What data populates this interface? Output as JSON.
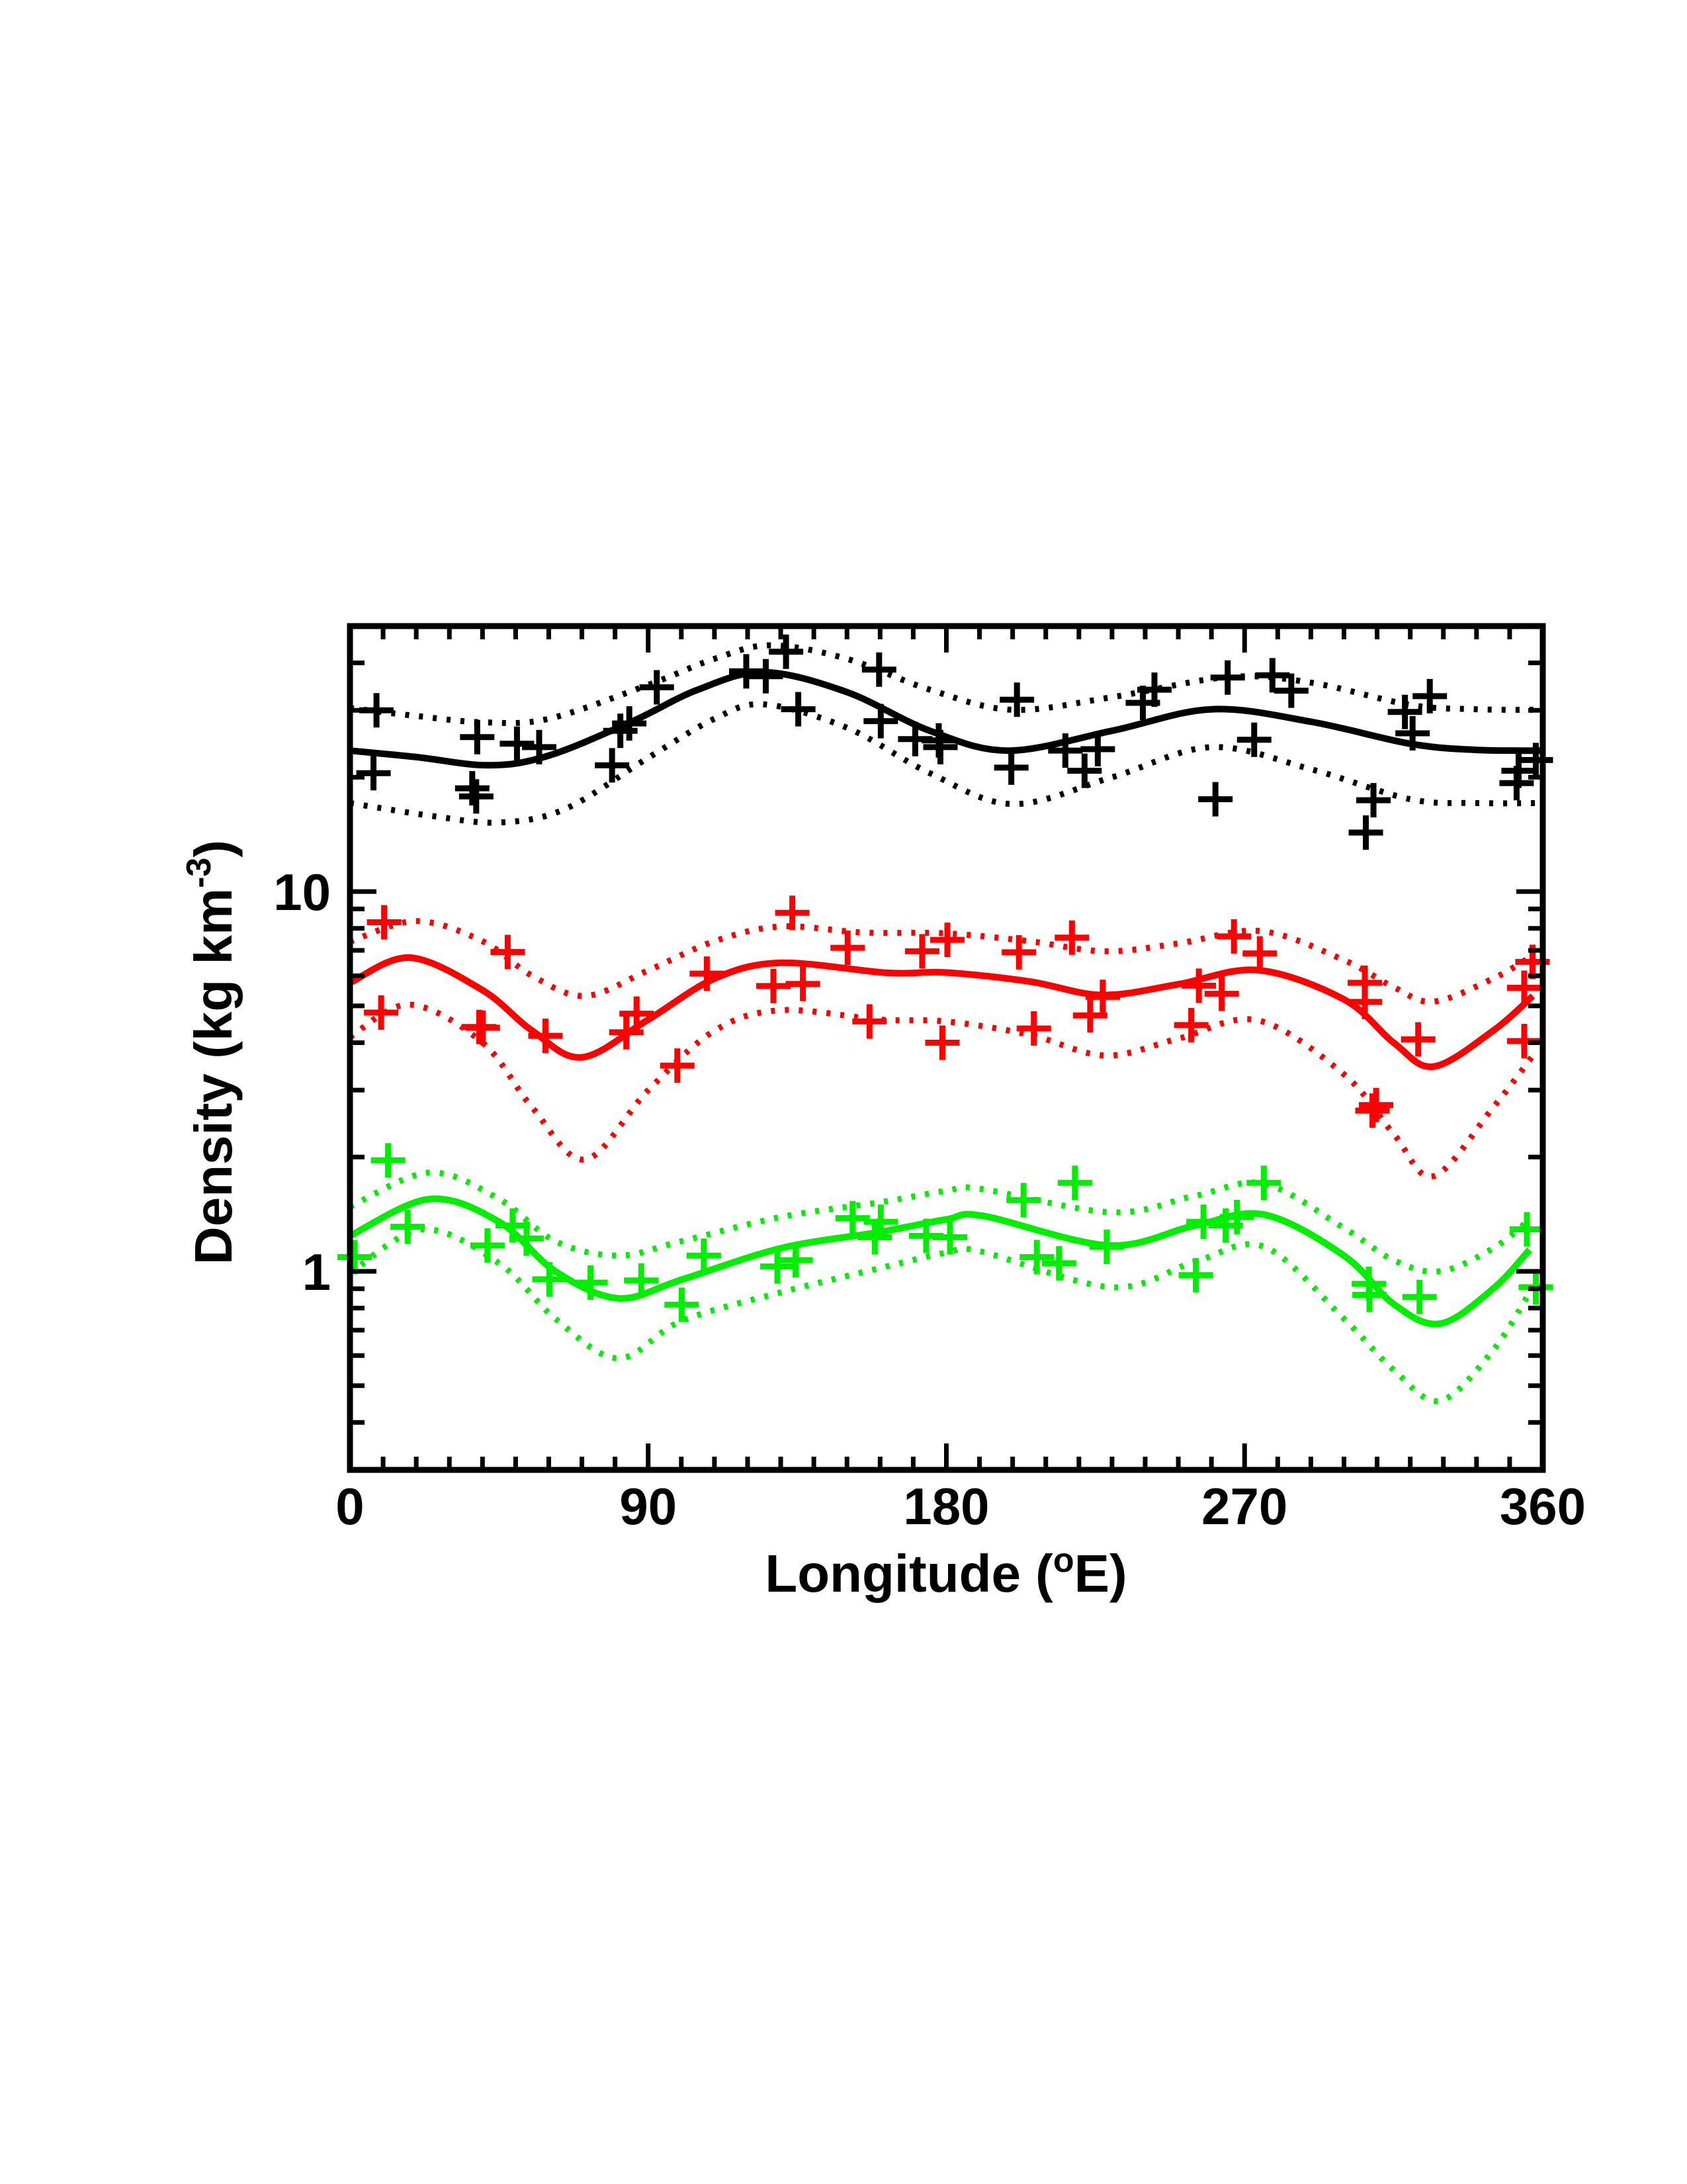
{
  "chart_data": {
    "type": "scatter",
    "title": "",
    "xlabel": "Longitude (°E)",
    "xlabel_parts": {
      "main": "Longitude (",
      "sup": "o",
      "tail": "E)"
    },
    "ylabel": "Density (kg km^-3)",
    "ylabel_parts": {
      "main": "Density (kg km",
      "sup": "-3",
      "tail": ")"
    },
    "xlim": [
      0,
      360
    ],
    "ylim": [
      0.3,
      50
    ],
    "yscale": "log",
    "xticks": [
      0,
      90,
      180,
      270,
      360
    ],
    "xtick_labels": [
      "0",
      "90",
      "180",
      "270",
      "360"
    ],
    "x_minor_step": 10,
    "yticks": [
      1,
      10
    ],
    "ytick_labels": [
      "1",
      "10"
    ],
    "grid": false,
    "legend": "none",
    "series": [
      {
        "name": "black",
        "color": "#000000",
        "points": [
          [
            7.1,
            20.5
          ],
          [
            8.0,
            30.0
          ],
          [
            36.9,
            18.7
          ],
          [
            38.1,
            17.8
          ],
          [
            38.4,
            25.5
          ],
          [
            50.4,
            24.5
          ],
          [
            57.1,
            24.0
          ],
          [
            79.1,
            21.5
          ],
          [
            81.6,
            26.5
          ],
          [
            84.3,
            27.7
          ],
          [
            92.6,
            34.5
          ],
          [
            119.6,
            38.0
          ],
          [
            125.5,
            36.9
          ],
          [
            131.6,
            42.8
          ],
          [
            135.3,
            30.2
          ],
          [
            159.7,
            38.4
          ],
          [
            160.2,
            28.1
          ],
          [
            170.6,
            25.2
          ],
          [
            177.7,
            25.0
          ],
          [
            178.2,
            24.0
          ],
          [
            199.6,
            21.2
          ],
          [
            201.3,
            32.0
          ],
          [
            215.9,
            23.5
          ],
          [
            221.7,
            20.8
          ],
          [
            225.7,
            23.7
          ],
          [
            239.3,
            31.4
          ],
          [
            242.8,
            34.0
          ],
          [
            261.2,
            17.5
          ],
          [
            264.9,
            36.6
          ],
          [
            272.9,
            25.1
          ],
          [
            278.4,
            37.1
          ],
          [
            284.1,
            33.8
          ],
          [
            306.6,
            14.3
          ],
          [
            308.9,
            17.4
          ],
          [
            318.4,
            29.7
          ],
          [
            320.7,
            26.1
          ],
          [
            325.9,
            32.7
          ],
          [
            352.1,
            19.3
          ],
          [
            352.7,
            20.8
          ],
          [
            357.9,
            22.2
          ]
        ],
        "fit": [
          [
            0,
            23.5
          ],
          [
            20,
            22.6
          ],
          [
            42,
            21.5
          ],
          [
            60,
            22.8
          ],
          [
            85,
            28.0
          ],
          [
            105,
            34.0
          ],
          [
            125,
            37.8
          ],
          [
            150,
            33.5
          ],
          [
            175,
            26.5
          ],
          [
            198.7,
            23.5
          ],
          [
            230,
            26.5
          ],
          [
            260,
            30.2
          ],
          [
            290,
            28.0
          ],
          [
            320,
            24.5
          ],
          [
            340,
            23.6
          ],
          [
            360,
            23.5
          ]
        ],
        "upper": [
          [
            0,
            30.4
          ],
          [
            20,
            29.0
          ],
          [
            40,
            27.9
          ],
          [
            60,
            28.5
          ],
          [
            90,
            35.0
          ],
          [
            110,
            41.0
          ],
          [
            127,
            44.5
          ],
          [
            150,
            41.0
          ],
          [
            175,
            34.0
          ],
          [
            200,
            30.1
          ],
          [
            230,
            32.5
          ],
          [
            265,
            36.7
          ],
          [
            290,
            35.5
          ],
          [
            320,
            31.0
          ],
          [
            340,
            30.2
          ],
          [
            360,
            30.1
          ]
        ],
        "lower": [
          [
            0,
            17.1
          ],
          [
            25,
            15.8
          ],
          [
            45,
            15.2
          ],
          [
            65,
            16.5
          ],
          [
            90,
            22.5
          ],
          [
            110,
            28.5
          ],
          [
            125,
            31.1
          ],
          [
            150,
            27.0
          ],
          [
            175,
            20.5
          ],
          [
            200,
            17.0
          ],
          [
            230,
            20.0
          ],
          [
            260,
            24.0
          ],
          [
            290,
            21.0
          ],
          [
            320,
            17.5
          ],
          [
            340,
            17.1
          ],
          [
            360,
            17.1
          ]
        ]
      },
      {
        "name": "red",
        "color": "#ff0000",
        "points": [
          [
            9.4,
            4.8
          ],
          [
            10.3,
            8.3
          ],
          [
            39.0,
            4.4
          ],
          [
            40.1,
            4.38
          ],
          [
            47.6,
            6.93
          ],
          [
            59.0,
            4.17
          ],
          [
            83.4,
            4.26
          ],
          [
            86.5,
            4.77
          ],
          [
            98.8,
            3.48
          ],
          [
            107.7,
            6.08
          ],
          [
            127.8,
            5.64
          ],
          [
            133.5,
            8.79
          ],
          [
            136.7,
            5.71
          ],
          [
            150.2,
            7.11
          ],
          [
            156.8,
            4.55
          ],
          [
            172.7,
            6.96
          ],
          [
            178.8,
            4.0
          ],
          [
            180.3,
            7.46
          ],
          [
            201.9,
            6.92
          ],
          [
            206.4,
            4.36
          ],
          [
            217.9,
            7.56
          ],
          [
            223.4,
            4.72
          ],
          [
            227.2,
            5.28
          ],
          [
            253.9,
            4.45
          ],
          [
            256.2,
            5.65
          ],
          [
            263.1,
            5.38
          ],
          [
            266.8,
            7.62
          ],
          [
            274.6,
            6.87
          ],
          [
            306.3,
            5.75
          ],
          [
            306.3,
            5.12
          ],
          [
            308.6,
            2.65
          ],
          [
            309.7,
            2.74
          ],
          [
            322.4,
            4.08
          ],
          [
            354.4,
            5.58
          ],
          [
            354.4,
            4.04
          ],
          [
            356.9,
            6.53
          ]
        ],
        "fit": [
          [
            0,
            5.75
          ],
          [
            18,
            6.7
          ],
          [
            40,
            5.5
          ],
          [
            55,
            4.3
          ],
          [
            70,
            3.66
          ],
          [
            90,
            4.6
          ],
          [
            110,
            5.9
          ],
          [
            130,
            6.49
          ],
          [
            162,
            6.11
          ],
          [
            180,
            6.12
          ],
          [
            205,
            5.8
          ],
          [
            227,
            5.34
          ],
          [
            250,
            5.7
          ],
          [
            274,
            6.21
          ],
          [
            300,
            5.2
          ],
          [
            315,
            4.0
          ],
          [
            327,
            3.46
          ],
          [
            345,
            4.3
          ],
          [
            357,
            5.31
          ]
        ],
        "upper": [
          [
            0,
            7.38
          ],
          [
            20,
            8.36
          ],
          [
            40,
            7.4
          ],
          [
            55,
            6.0
          ],
          [
            71,
            5.31
          ],
          [
            90,
            6.2
          ],
          [
            110,
            7.4
          ],
          [
            130,
            8.09
          ],
          [
            155,
            7.8
          ],
          [
            180,
            7.76
          ],
          [
            205,
            7.4
          ],
          [
            228,
            6.96
          ],
          [
            250,
            7.3
          ],
          [
            275,
            7.87
          ],
          [
            300,
            6.6
          ],
          [
            315,
            5.6
          ],
          [
            327,
            5.13
          ],
          [
            345,
            5.9
          ],
          [
            357,
            6.79
          ]
        ],
        "lower": [
          [
            0,
            4.14
          ],
          [
            18,
            5.04
          ],
          [
            40,
            4.0
          ],
          [
            55,
            2.7
          ],
          [
            71,
            1.97
          ],
          [
            90,
            3.0
          ],
          [
            110,
            4.3
          ],
          [
            130,
            4.87
          ],
          [
            160,
            4.6
          ],
          [
            180,
            4.55
          ],
          [
            205,
            4.2
          ],
          [
            228,
            3.7
          ],
          [
            250,
            4.1
          ],
          [
            274,
            4.58
          ],
          [
            300,
            3.3
          ],
          [
            315,
            2.3
          ],
          [
            327,
            1.78
          ],
          [
            345,
            2.7
          ],
          [
            357,
            3.7
          ]
        ]
      },
      {
        "name": "green",
        "color": "#00ee00",
        "points": [
          [
            1.4,
            1.09
          ],
          [
            11.5,
            1.96
          ],
          [
            17.4,
            1.31
          ],
          [
            41.5,
            1.17
          ],
          [
            49.1,
            1.32
          ],
          [
            53.3,
            1.22
          ],
          [
            60.2,
            0.953
          ],
          [
            72.6,
            0.934
          ],
          [
            87.9,
            0.946
          ],
          [
            100.1,
            0.817
          ],
          [
            106.8,
            1.1
          ],
          [
            129.0,
            1.03
          ],
          [
            134.5,
            1.07
          ],
          [
            151.7,
            1.38
          ],
          [
            158.4,
            1.23
          ],
          [
            160.2,
            1.35
          ],
          [
            173.9,
            1.24
          ],
          [
            181.1,
            1.23
          ],
          [
            203.3,
            1.54
          ],
          [
            207.3,
            1.09
          ],
          [
            214.0,
            1.05
          ],
          [
            218.8,
            1.71
          ],
          [
            228.4,
            1.16
          ],
          [
            255.3,
            0.977
          ],
          [
            257.6,
            1.35
          ],
          [
            264.3,
            1.32
          ],
          [
            267.7,
            1.39
          ],
          [
            275.8,
            1.71
          ],
          [
            307.5,
            0.927
          ],
          [
            307.7,
            0.867
          ],
          [
            322.8,
            0.856
          ],
          [
            355.2,
            1.29
          ],
          [
            357.9,
            0.908
          ]
        ],
        "fit": [
          [
            0,
            1.24
          ],
          [
            24,
            1.55
          ],
          [
            45,
            1.35
          ],
          [
            62,
            1.0
          ],
          [
            81,
            0.849
          ],
          [
            100,
            0.95
          ],
          [
            130,
            1.15
          ],
          [
            160,
            1.27
          ],
          [
            180,
            1.37
          ],
          [
            191,
            1.4
          ],
          [
            229,
            1.17
          ],
          [
            255,
            1.32
          ],
          [
            276,
            1.41
          ],
          [
            300,
            1.1
          ],
          [
            315,
            0.82
          ],
          [
            329,
            0.728
          ],
          [
            345,
            0.9
          ],
          [
            356,
            1.14
          ]
        ],
        "upper": [
          [
            0,
            1.48
          ],
          [
            24,
            1.82
          ],
          [
            45,
            1.55
          ],
          [
            62,
            1.2
          ],
          [
            81,
            1.1
          ],
          [
            100,
            1.2
          ],
          [
            130,
            1.39
          ],
          [
            160,
            1.52
          ],
          [
            180,
            1.63
          ],
          [
            190,
            1.65
          ],
          [
            230,
            1.43
          ],
          [
            255,
            1.58
          ],
          [
            276,
            1.7
          ],
          [
            300,
            1.3
          ],
          [
            315,
            1.07
          ],
          [
            329,
            1.0
          ],
          [
            345,
            1.15
          ],
          [
            356,
            1.37
          ]
        ],
        "lower": [
          [
            0,
            0.99
          ],
          [
            22,
            1.29
          ],
          [
            45,
            1.05
          ],
          [
            62,
            0.75
          ],
          [
            81,
            0.59
          ],
          [
            100,
            0.74
          ],
          [
            130,
            0.88
          ],
          [
            160,
            1.02
          ],
          [
            180,
            1.12
          ],
          [
            190,
            1.13
          ],
          [
            230,
            0.908
          ],
          [
            255,
            1.06
          ],
          [
            276,
            1.16
          ],
          [
            300,
            0.75
          ],
          [
            315,
            0.55
          ],
          [
            329,
            0.456
          ],
          [
            345,
            0.62
          ],
          [
            356,
            0.879
          ]
        ]
      }
    ]
  }
}
